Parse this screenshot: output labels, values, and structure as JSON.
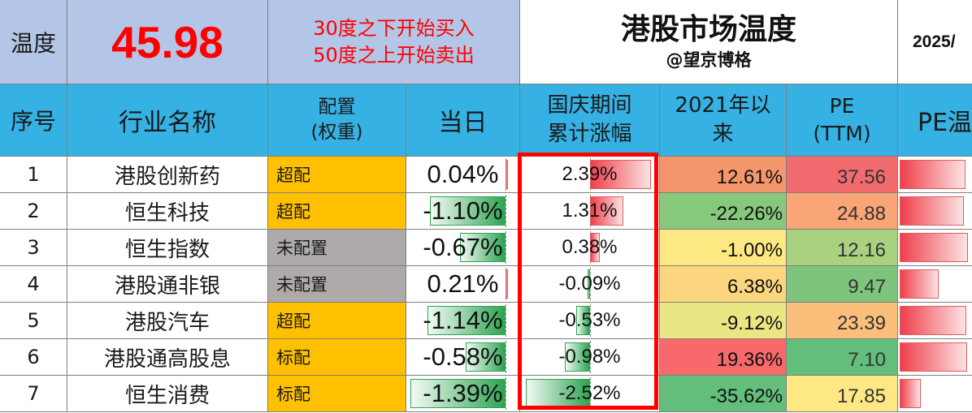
{
  "header": {
    "temp_label": "温度",
    "temp_value": "45.98",
    "rule_line1": "30度之下开始买入",
    "rule_line2": "50度之上开始卖出",
    "title": "港股市场温度",
    "author": "@望京博格",
    "date": "2025/"
  },
  "columns": {
    "seq": "序号",
    "industry": "行业名称",
    "alloc_line1": "配置",
    "alloc_line2": "(权重)",
    "day": "当日",
    "holiday_line1": "国庆期间",
    "holiday_line2": "累计涨幅",
    "since_line1": "2021年以",
    "since_line2": "来",
    "pe_line1": "PE",
    "pe_line2": "(TTM)",
    "pe_temp": "PE温"
  },
  "colors": {
    "header_bg": "#35b1e3",
    "top_bg": "#b4c6e7",
    "overweight": "#ffc000",
    "unallocated": "#aeaaaa",
    "temp_value": "#ff0000",
    "highlight_box": "#ff0000"
  },
  "rows": [
    {
      "seq": "1",
      "name": "港股创新药",
      "alloc": "超配",
      "alloc_color": "#ffc000",
      "day": "0.04%",
      "day_pct": 0.04,
      "holiday": "2.39%",
      "holiday_pct": 2.39,
      "since2021": "12.61%",
      "since_color": "#f4966b",
      "pe": "37.56",
      "pe_color": "#f16a6e",
      "pe_temp_level": 0.92
    },
    {
      "seq": "2",
      "name": "恒生科技",
      "alloc": "超配",
      "alloc_color": "#ffc000",
      "day": "-1.10%",
      "day_pct": -1.1,
      "holiday": "1.31%",
      "holiday_pct": 1.31,
      "since2021": "-22.26%",
      "since_color": "#86c87c",
      "pe": "24.88",
      "pe_color": "#f9a576",
      "pe_temp_level": 0.9
    },
    {
      "seq": "3",
      "name": "恒生指数",
      "alloc": "未配置",
      "alloc_color": "#aeaaaa",
      "day": "-0.67%",
      "day_pct": -0.67,
      "holiday": "0.38%",
      "holiday_pct": 0.38,
      "since2021": "-1.00%",
      "since_color": "#fde882",
      "pe": "12.16",
      "pe_color": "#a8d280",
      "pe_temp_level": 0.95
    },
    {
      "seq": "4",
      "name": "港股通非银",
      "alloc": "未配置",
      "alloc_color": "#aeaaaa",
      "day": "0.21%",
      "day_pct": 0.21,
      "holiday": "-0.09%",
      "holiday_pct": -0.09,
      "since2021": "6.38%",
      "since_color": "#fcd57f",
      "pe": "9.47",
      "pe_color": "#7ec47c",
      "pe_temp_level": 0.55
    },
    {
      "seq": "5",
      "name": "港股汽车",
      "alloc": "超配",
      "alloc_color": "#ffc000",
      "day": "-1.14%",
      "day_pct": -1.14,
      "holiday": "-0.53%",
      "holiday_pct": -0.53,
      "since2021": "-9.12%",
      "since_color": "#ebe684",
      "pe": "23.39",
      "pe_color": "#fcbe7b",
      "pe_temp_level": 0.93
    },
    {
      "seq": "6",
      "name": "港股通高股息",
      "alloc": "标配",
      "alloc_color": "#ffc000",
      "day": "-0.58%",
      "day_pct": -0.58,
      "holiday": "-0.98%",
      "holiday_pct": -0.98,
      "since2021": "19.36%",
      "since_color": "#f8696b",
      "pe": "7.10",
      "pe_color": "#63be7b",
      "pe_temp_level": 0.94
    },
    {
      "seq": "7",
      "name": "恒生消费",
      "alloc": "标配",
      "alloc_color": "#ffc000",
      "day": "-1.39%",
      "day_pct": -1.39,
      "holiday": "-2.52%",
      "holiday_pct": -2.52,
      "since2021": "-35.62%",
      "since_color": "#63be7b",
      "pe": "17.85",
      "pe_color": "#fee883",
      "pe_temp_level": 0.3
    }
  ]
}
